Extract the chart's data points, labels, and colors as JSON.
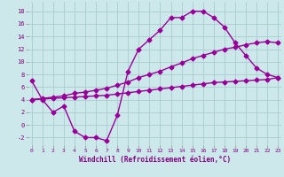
{
  "line1_x": [
    0,
    1,
    2,
    3,
    4,
    5,
    6,
    7,
    8,
    9,
    10,
    11,
    12,
    13,
    14,
    15,
    16,
    17,
    18,
    19,
    20,
    21,
    22,
    23
  ],
  "line1_y": [
    7.0,
    4.0,
    2.0,
    3.0,
    -1.0,
    -2.0,
    -2.0,
    -2.5,
    1.5,
    8.5,
    12.0,
    13.5,
    15.0,
    17.0,
    17.0,
    18.0,
    18.0,
    17.0,
    15.5,
    13.0,
    11.0,
    9.0,
    8.0,
    7.5
  ],
  "line2_x": [
    0,
    1,
    2,
    3,
    4,
    5,
    6,
    7,
    8,
    9,
    10,
    11,
    12,
    13,
    14,
    15,
    16,
    17,
    18,
    19,
    20,
    21,
    22,
    23
  ],
  "line2_y": [
    4.0,
    4.2,
    4.4,
    4.6,
    5.0,
    5.2,
    5.5,
    5.8,
    6.3,
    6.8,
    7.5,
    8.0,
    8.5,
    9.2,
    9.8,
    10.5,
    11.0,
    11.5,
    12.0,
    12.3,
    12.7,
    13.0,
    13.2,
    13.0
  ],
  "line3_x": [
    0,
    1,
    2,
    3,
    4,
    5,
    6,
    7,
    8,
    9,
    10,
    11,
    12,
    13,
    14,
    15,
    16,
    17,
    18,
    19,
    20,
    21,
    22,
    23
  ],
  "line3_y": [
    4.0,
    4.1,
    4.2,
    4.3,
    4.4,
    4.5,
    4.6,
    4.7,
    4.9,
    5.1,
    5.3,
    5.5,
    5.7,
    5.9,
    6.1,
    6.3,
    6.5,
    6.7,
    6.8,
    6.9,
    7.0,
    7.1,
    7.2,
    7.5
  ],
  "line_color": "#990099",
  "bg_color": "#cce8ea",
  "grid_color": "#aacccc",
  "xlabel": "Windchill (Refroidissement éolien,°C)",
  "xlabel_color": "#800080",
  "xticks": [
    0,
    1,
    2,
    3,
    4,
    5,
    6,
    7,
    8,
    9,
    10,
    11,
    12,
    13,
    14,
    15,
    16,
    17,
    18,
    19,
    20,
    21,
    22,
    23
  ],
  "yticks": [
    -2,
    0,
    2,
    4,
    6,
    8,
    10,
    12,
    14,
    16,
    18
  ],
  "xlim": [
    -0.3,
    23.3
  ],
  "ylim": [
    -3.2,
    19.5
  ],
  "marker": "D",
  "markersize": 2.5,
  "linewidth": 1.0
}
